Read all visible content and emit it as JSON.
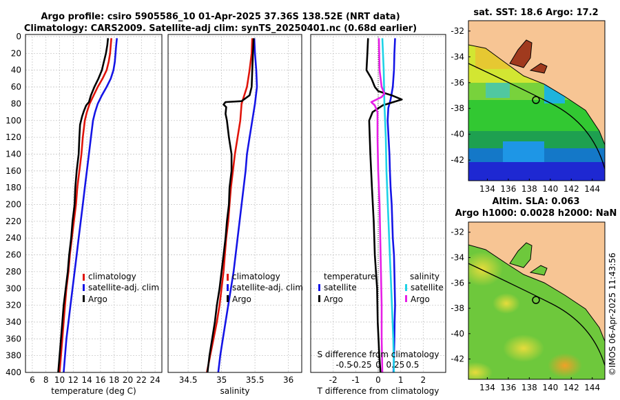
{
  "title": {
    "line1": "Argo profile: csiro 5905586_10 01-Apr-2025 37.36S 138.52E (NRT data)",
    "line2": "Climatology: CARS2009. Satellite-adj clim: synTS_20250401.nc (0.68d earlier)"
  },
  "colors": {
    "climatology": "#e0140a",
    "satellite": "#1414e6",
    "argo": "#000000",
    "sat_salinity": "#1ed2e6",
    "argo_salinity": "#e61ee6"
  },
  "chart_data": [
    {
      "type": "line",
      "panel": "temperature",
      "xlabel": "temperature (deg C)",
      "xlim": [
        5,
        25
      ],
      "xticks": [
        "6",
        "8",
        "10",
        "12",
        "14",
        "16",
        "18",
        "20",
        "22",
        "24"
      ],
      "ylim": [
        0,
        400
      ],
      "yticks": [
        "0",
        "20",
        "40",
        "60",
        "80",
        "100",
        "120",
        "140",
        "160",
        "180",
        "200",
        "220",
        "240",
        "260",
        "280",
        "300",
        "320",
        "340",
        "360",
        "380",
        "400"
      ],
      "legend": [
        "climatology",
        "satellite-adj. clim",
        "Argo"
      ],
      "series": [
        {
          "name": "climatology",
          "color": "#e0140a",
          "points": [
            [
              17.6,
              2
            ],
            [
              17.5,
              10
            ],
            [
              17.4,
              20
            ],
            [
              17.2,
              30
            ],
            [
              16.9,
              40
            ],
            [
              16.3,
              50
            ],
            [
              15.6,
              60
            ],
            [
              15.0,
              70
            ],
            [
              14.4,
              80
            ],
            [
              14.0,
              90
            ],
            [
              13.7,
              100
            ],
            [
              13.4,
              120
            ],
            [
              13.2,
              140
            ],
            [
              12.9,
              160
            ],
            [
              12.6,
              180
            ],
            [
              12.4,
              200
            ],
            [
              12.1,
              220
            ],
            [
              11.8,
              240
            ],
            [
              11.5,
              260
            ],
            [
              11.3,
              280
            ],
            [
              11.0,
              300
            ],
            [
              10.8,
              320
            ],
            [
              10.6,
              340
            ],
            [
              10.4,
              360
            ],
            [
              10.2,
              380
            ],
            [
              10.0,
              400
            ]
          ]
        },
        {
          "name": "satellite-adj. clim",
          "color": "#1414e6",
          "points": [
            [
              18.4,
              2
            ],
            [
              18.3,
              10
            ],
            [
              18.2,
              20
            ],
            [
              18.1,
              30
            ],
            [
              17.9,
              40
            ],
            [
              17.5,
              50
            ],
            [
              16.9,
              60
            ],
            [
              16.2,
              70
            ],
            [
              15.6,
              80
            ],
            [
              15.2,
              90
            ],
            [
              14.9,
              100
            ],
            [
              14.6,
              120
            ],
            [
              14.3,
              140
            ],
            [
              14.0,
              160
            ],
            [
              13.7,
              180
            ],
            [
              13.4,
              200
            ],
            [
              13.1,
              220
            ],
            [
              12.8,
              240
            ],
            [
              12.5,
              260
            ],
            [
              12.2,
              280
            ],
            [
              11.9,
              300
            ],
            [
              11.6,
              320
            ],
            [
              11.3,
              340
            ],
            [
              11.0,
              360
            ],
            [
              10.8,
              380
            ],
            [
              10.6,
              400
            ]
          ]
        },
        {
          "name": "Argo",
          "color": "#000000",
          "points": [
            [
              17.1,
              2
            ],
            [
              17.0,
              10
            ],
            [
              16.8,
              20
            ],
            [
              16.5,
              30
            ],
            [
              16.2,
              40
            ],
            [
              15.7,
              50
            ],
            [
              15.1,
              60
            ],
            [
              14.6,
              70
            ],
            [
              14.3,
              78
            ],
            [
              13.9,
              82
            ],
            [
              13.6,
              88
            ],
            [
              13.3,
              95
            ],
            [
              13.0,
              105
            ],
            [
              12.9,
              120
            ],
            [
              12.8,
              140
            ],
            [
              12.5,
              160
            ],
            [
              12.3,
              180
            ],
            [
              12.2,
              200
            ],
            [
              11.9,
              220
            ],
            [
              11.7,
              240
            ],
            [
              11.4,
              260
            ],
            [
              11.2,
              280
            ],
            [
              10.9,
              300
            ],
            [
              10.6,
              320
            ],
            [
              10.4,
              340
            ],
            [
              10.2,
              360
            ],
            [
              10.0,
              380
            ],
            [
              9.8,
              400
            ]
          ]
        }
      ]
    },
    {
      "type": "line",
      "panel": "salinity",
      "xlabel": "salinity",
      "xlim": [
        34.2,
        36.2
      ],
      "xticks": [
        "34.5",
        "35",
        "35.5",
        "36"
      ],
      "ylim": [
        0,
        400
      ],
      "legend": [
        "climatology",
        "satellite-adj. clim",
        "Argo"
      ],
      "series": [
        {
          "name": "climatology",
          "color": "#e0140a",
          "points": [
            [
              35.46,
              2
            ],
            [
              35.45,
              20
            ],
            [
              35.42,
              40
            ],
            [
              35.38,
              60
            ],
            [
              35.3,
              80
            ],
            [
              35.28,
              100
            ],
            [
              35.24,
              120
            ],
            [
              35.2,
              140
            ],
            [
              35.17,
              160
            ],
            [
              35.14,
              180
            ],
            [
              35.12,
              200
            ],
            [
              35.1,
              220
            ],
            [
              35.07,
              240
            ],
            [
              35.05,
              260
            ],
            [
              35.03,
              280
            ],
            [
              35.0,
              300
            ],
            [
              34.97,
              320
            ],
            [
              34.93,
              340
            ],
            [
              34.88,
              360
            ],
            [
              34.83,
              380
            ],
            [
              34.78,
              400
            ]
          ]
        },
        {
          "name": "satellite-adj. clim",
          "color": "#1414e6",
          "points": [
            [
              35.49,
              2
            ],
            [
              35.5,
              20
            ],
            [
              35.52,
              40
            ],
            [
              35.53,
              60
            ],
            [
              35.5,
              80
            ],
            [
              35.46,
              100
            ],
            [
              35.42,
              120
            ],
            [
              35.38,
              140
            ],
            [
              35.36,
              160
            ],
            [
              35.33,
              180
            ],
            [
              35.3,
              200
            ],
            [
              35.27,
              220
            ],
            [
              35.24,
              240
            ],
            [
              35.21,
              260
            ],
            [
              35.18,
              280
            ],
            [
              35.14,
              300
            ],
            [
              35.1,
              320
            ],
            [
              35.06,
              340
            ],
            [
              35.02,
              360
            ],
            [
              34.98,
              380
            ],
            [
              34.95,
              400
            ]
          ]
        },
        {
          "name": "Argo",
          "color": "#000000",
          "points": [
            [
              35.48,
              2
            ],
            [
              35.47,
              20
            ],
            [
              35.46,
              40
            ],
            [
              35.45,
              60
            ],
            [
              35.42,
              70
            ],
            [
              35.3,
              77
            ],
            [
              35.06,
              78
            ],
            [
              35.03,
              81
            ],
            [
              35.07,
              84
            ],
            [
              35.06,
              92
            ],
            [
              35.08,
              100
            ],
            [
              35.11,
              120
            ],
            [
              35.15,
              140
            ],
            [
              35.15,
              160
            ],
            [
              35.12,
              180
            ],
            [
              35.11,
              200
            ],
            [
              35.08,
              220
            ],
            [
              35.06,
              240
            ],
            [
              35.03,
              260
            ],
            [
              35.0,
              280
            ],
            [
              34.97,
              300
            ],
            [
              34.93,
              320
            ],
            [
              34.9,
              340
            ],
            [
              34.86,
              360
            ],
            [
              34.82,
              380
            ],
            [
              34.79,
              400
            ]
          ]
        }
      ]
    },
    {
      "type": "line",
      "panel": "difference",
      "xlabel": "T difference from climatology",
      "xlabel_top": "S difference from climatology",
      "xlim": [
        -3,
        3
      ],
      "xticks": [
        "-2",
        "-1",
        "0",
        "1",
        "2"
      ],
      "xticks_s": [
        "-0.5",
        "-0.25",
        "0",
        "0.25",
        "0.5"
      ],
      "ylim": [
        0,
        400
      ],
      "legend_temperature": {
        "header": "temperature",
        "items": [
          "satellite",
          "Argo"
        ]
      },
      "legend_salinity": {
        "header": "salinity",
        "items": [
          "satellite",
          "Argo"
        ]
      },
      "series": [
        {
          "name": "temperature satellite",
          "color": "#1414e6",
          "points": [
            [
              0.75,
              2
            ],
            [
              0.72,
              20
            ],
            [
              0.7,
              40
            ],
            [
              0.65,
              60
            ],
            [
              0.55,
              75
            ],
            [
              0.45,
              85
            ],
            [
              0.42,
              100
            ],
            [
              0.5,
              140
            ],
            [
              0.52,
              160
            ],
            [
              0.55,
              180
            ],
            [
              0.6,
              200
            ],
            [
              0.65,
              240
            ],
            [
              0.7,
              260
            ],
            [
              0.72,
              280
            ],
            [
              0.75,
              320
            ],
            [
              0.73,
              340
            ],
            [
              0.72,
              360
            ],
            [
              0.7,
              380
            ],
            [
              0.68,
              400
            ]
          ]
        },
        {
          "name": "temperature Argo",
          "color": "#000000",
          "points": [
            [
              -0.45,
              2
            ],
            [
              -0.48,
              20
            ],
            [
              -0.52,
              40
            ],
            [
              -0.3,
              50
            ],
            [
              -0.15,
              60
            ],
            [
              0.0,
              65
            ],
            [
              0.6,
              70
            ],
            [
              1.05,
              75
            ],
            [
              0.2,
              82
            ],
            [
              -0.25,
              90
            ],
            [
              -0.4,
              100
            ],
            [
              -0.35,
              140
            ],
            [
              -0.28,
              180
            ],
            [
              -0.2,
              220
            ],
            [
              -0.15,
              260
            ],
            [
              -0.05,
              300
            ],
            [
              -0.02,
              340
            ],
            [
              0.05,
              380
            ],
            [
              0.1,
              400
            ]
          ]
        },
        {
          "name": "salinity satellite",
          "color": "#1ed2e6",
          "points": [
            [
              0.06,
              2
            ],
            [
              0.08,
              40
            ],
            [
              0.09,
              80
            ],
            [
              0.11,
              120
            ],
            [
              0.12,
              160
            ],
            [
              0.14,
              200
            ],
            [
              0.16,
              240
            ],
            [
              0.18,
              280
            ],
            [
              0.2,
              320
            ],
            [
              0.22,
              360
            ],
            [
              0.23,
              400
            ]
          ]
        },
        {
          "name": "salinity Argo",
          "color": "#e61ee6",
          "points": [
            [
              0.01,
              2
            ],
            [
              0.02,
              40
            ],
            [
              0.05,
              60
            ],
            [
              0.09,
              68
            ],
            [
              0.05,
              72
            ],
            [
              -0.1,
              78
            ],
            [
              -0.05,
              82
            ],
            [
              -0.01,
              90
            ],
            [
              -0.01,
              120
            ],
            [
              0.0,
              160
            ],
            [
              0.02,
              200
            ],
            [
              0.03,
              240
            ],
            [
              0.04,
              280
            ],
            [
              0.05,
              320
            ],
            [
              0.05,
              360
            ],
            [
              0.06,
              400
            ]
          ]
        }
      ]
    }
  ],
  "maps": {
    "sst": {
      "title": "sat. SST: 18.6 Argo: 17.2"
    },
    "sla": {
      "title_line1": "Altim. SLA: 0.063",
      "title_line2": "Argo h1000: 0.0028 h2000: NaN"
    },
    "lat_ticks": [
      "-32",
      "-34",
      "-36",
      "-38",
      "-40",
      "-42"
    ],
    "lon_ticks": [
      "134",
      "136",
      "138",
      "140",
      "142",
      "144"
    ],
    "profile_location": {
      "lon": 138.52,
      "lat": -37.36
    }
  },
  "watermark": "©IMOS 06-Apr-2025 11:43:56"
}
